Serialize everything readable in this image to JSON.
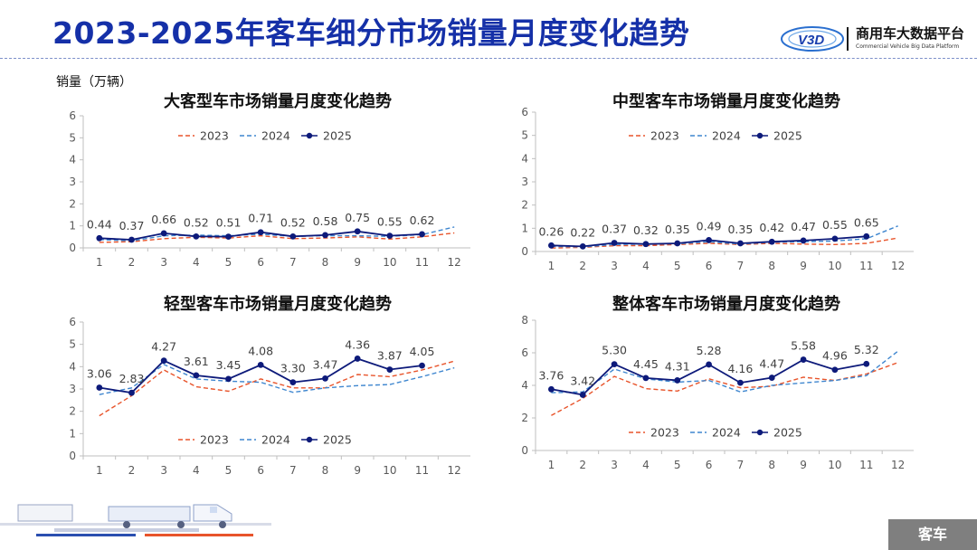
{
  "header": {
    "title": "2023-2025年客车细分市场销量月度变化趋势",
    "logo_mark": "V3D",
    "logo_name": "商用车大数据平台",
    "logo_subtitle": "Commercial Vehicle Big Data Platform"
  },
  "unit_label": "销量（万辆）",
  "footer": {
    "tag": "客车"
  },
  "colors": {
    "s2023": "#e8542b",
    "s2024": "#3e86cf",
    "s2025": "#0d1a7a",
    "axis": "#bfbfbf",
    "title": "#1530a8"
  },
  "chart_data": [
    {
      "type": "line",
      "title": "大客型车市场销量月度变化趋势",
      "ylim": [
        0,
        6
      ],
      "yticks": [
        0,
        1,
        2,
        3,
        4,
        5,
        6
      ],
      "x": [
        "1",
        "2",
        "3",
        "4",
        "5",
        "6",
        "7",
        "8",
        "9",
        "10",
        "11",
        "12"
      ],
      "legend_position": "top",
      "series": [
        {
          "name": "2023",
          "style": "dashed",
          "values": [
            0.25,
            0.28,
            0.42,
            0.48,
            0.45,
            0.55,
            0.42,
            0.45,
            0.5,
            0.4,
            0.5,
            0.68
          ]
        },
        {
          "name": "2024",
          "style": "dashed",
          "values": [
            0.38,
            0.32,
            0.55,
            0.58,
            0.55,
            0.62,
            0.52,
            0.55,
            0.55,
            0.52,
            0.6,
            0.95
          ]
        },
        {
          "name": "2025",
          "style": "solid-markers",
          "values": [
            0.44,
            0.37,
            0.66,
            0.52,
            0.51,
            0.71,
            0.52,
            0.58,
            0.75,
            0.55,
            0.62,
            null
          ]
        }
      ],
      "data_labels": [
        "0.44",
        "0.37",
        "0.66",
        "0.52",
        "0.51",
        "0.71",
        "0.52",
        "0.58",
        "0.75",
        "0.55",
        "0.62"
      ]
    },
    {
      "type": "line",
      "title": "中型客车市场销量月度变化趋势",
      "ylim": [
        0,
        6
      ],
      "yticks": [
        0,
        1,
        2,
        3,
        4,
        5,
        6
      ],
      "x": [
        "1",
        "2",
        "3",
        "4",
        "5",
        "6",
        "7",
        "8",
        "9",
        "10",
        "11",
        "12"
      ],
      "legend_position": "top",
      "series": [
        {
          "name": "2023",
          "style": "dashed",
          "values": [
            0.15,
            0.18,
            0.25,
            0.25,
            0.3,
            0.35,
            0.3,
            0.35,
            0.32,
            0.3,
            0.35,
            0.58
          ]
        },
        {
          "name": "2024",
          "style": "dashed",
          "values": [
            0.22,
            0.2,
            0.3,
            0.32,
            0.33,
            0.42,
            0.32,
            0.4,
            0.42,
            0.45,
            0.55,
            1.1
          ]
        },
        {
          "name": "2025",
          "style": "solid-markers",
          "values": [
            0.26,
            0.22,
            0.37,
            0.32,
            0.35,
            0.49,
            0.35,
            0.42,
            0.47,
            0.55,
            0.65,
            null
          ]
        }
      ],
      "data_labels": [
        "0.26",
        "0.22",
        "0.37",
        "0.32",
        "0.35",
        "0.49",
        "0.35",
        "0.42",
        "0.47",
        "0.55",
        "0.65"
      ]
    },
    {
      "type": "line",
      "title": "轻型客车市场销量月度变化趋势",
      "ylim": [
        0,
        6
      ],
      "yticks": [
        0,
        1,
        2,
        3,
        4,
        5,
        6
      ],
      "x": [
        "1",
        "2",
        "3",
        "4",
        "5",
        "6",
        "7",
        "8",
        "9",
        "10",
        "11",
        "12"
      ],
      "legend_position": "bottom",
      "series": [
        {
          "name": "2023",
          "style": "dashed",
          "values": [
            1.8,
            2.7,
            3.85,
            3.1,
            2.9,
            3.45,
            3.05,
            3.05,
            3.65,
            3.55,
            3.85,
            4.25
          ]
        },
        {
          "name": "2024",
          "style": "dashed",
          "values": [
            2.75,
            3.05,
            4.1,
            3.45,
            3.35,
            3.3,
            2.85,
            3.05,
            3.15,
            3.2,
            3.55,
            3.95
          ]
        },
        {
          "name": "2025",
          "style": "solid-markers",
          "values": [
            3.06,
            2.83,
            4.27,
            3.61,
            3.45,
            4.08,
            3.3,
            3.47,
            4.36,
            3.87,
            4.05,
            null
          ]
        }
      ],
      "data_labels": [
        "3.06",
        "2.83",
        "4.27",
        "3.61",
        "3.45",
        "4.08",
        "3.30",
        "3.47",
        "4.36",
        "3.87",
        "4.05"
      ]
    },
    {
      "type": "line",
      "title": "整体客车市场销量月度变化趋势",
      "ylim": [
        0,
        8
      ],
      "yticks": [
        0,
        2,
        4,
        6,
        8
      ],
      "x": [
        "1",
        "2",
        "3",
        "4",
        "5",
        "6",
        "7",
        "8",
        "9",
        "10",
        "11",
        "12"
      ],
      "legend_position": "bottom",
      "series": [
        {
          "name": "2023",
          "style": "dashed",
          "values": [
            2.15,
            3.2,
            4.55,
            3.8,
            3.65,
            4.4,
            3.85,
            3.95,
            4.5,
            4.3,
            4.7,
            5.4
          ]
        },
        {
          "name": "2024",
          "style": "dashed",
          "values": [
            3.55,
            3.6,
            5.0,
            4.4,
            4.2,
            4.3,
            3.6,
            4.0,
            4.15,
            4.3,
            4.6,
            6.1
          ]
        },
        {
          "name": "2025",
          "style": "solid-markers",
          "values": [
            3.76,
            3.42,
            5.3,
            4.45,
            4.31,
            5.28,
            4.16,
            4.47,
            5.58,
            4.96,
            5.32,
            null
          ]
        }
      ],
      "data_labels": [
        "3.76",
        "3.42",
        "5.30",
        "4.45",
        "4.31",
        "5.28",
        "4.16",
        "4.47",
        "5.58",
        "4.96",
        "5.32"
      ]
    }
  ]
}
